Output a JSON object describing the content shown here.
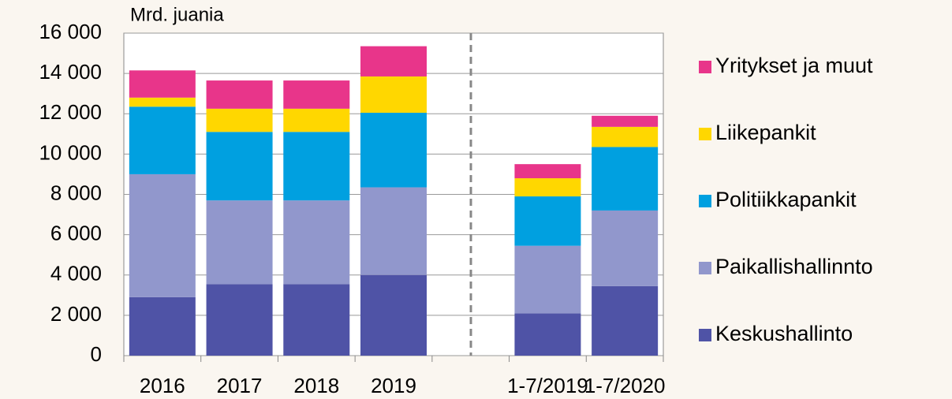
{
  "chart_data": {
    "type": "stacked_bar",
    "y_label": "Mrd. juania",
    "categories": [
      "2016",
      "2017",
      "2018",
      "2019",
      null,
      "1-7/2019",
      "1-7/2020"
    ],
    "series": [
      {
        "name": "Keskushallinto",
        "color": "#4f53a6",
        "values": [
          2900,
          3550,
          3550,
          4000,
          null,
          2100,
          3450
        ]
      },
      {
        "name": "Paikallishallinnto",
        "color": "#9197cc",
        "values": [
          6100,
          4150,
          4150,
          4350,
          null,
          3350,
          3750
        ]
      },
      {
        "name": "Politiikkapankit",
        "color": "#00a0e0",
        "values": [
          3350,
          3400,
          3400,
          3700,
          null,
          2450,
          3150
        ]
      },
      {
        "name": "Liikepankit",
        "color": "#ffd700",
        "values": [
          450,
          1150,
          1150,
          1800,
          null,
          900,
          1000
        ]
      },
      {
        "name": "Yritykset ja muut",
        "color": "#e8358a",
        "values": [
          1350,
          1400,
          1400,
          1500,
          null,
          700,
          550
        ]
      }
    ],
    "ylim": [
      0,
      16000
    ],
    "yticks": [
      0,
      {
        "value": 2000,
        "label": "2 000"
      },
      {
        "value": 4000,
        "label": "4 000"
      },
      {
        "value": 6000,
        "label": "6 000"
      },
      {
        "value": 8000,
        "label": "8 000"
      },
      {
        "value": 10000,
        "label": "10 000"
      },
      {
        "value": 12000,
        "label": "12 000"
      },
      {
        "value": 14000,
        "label": "14 000"
      },
      {
        "value": 16000,
        "label": "16 000"
      }
    ],
    "grid": true,
    "legend": "right"
  }
}
